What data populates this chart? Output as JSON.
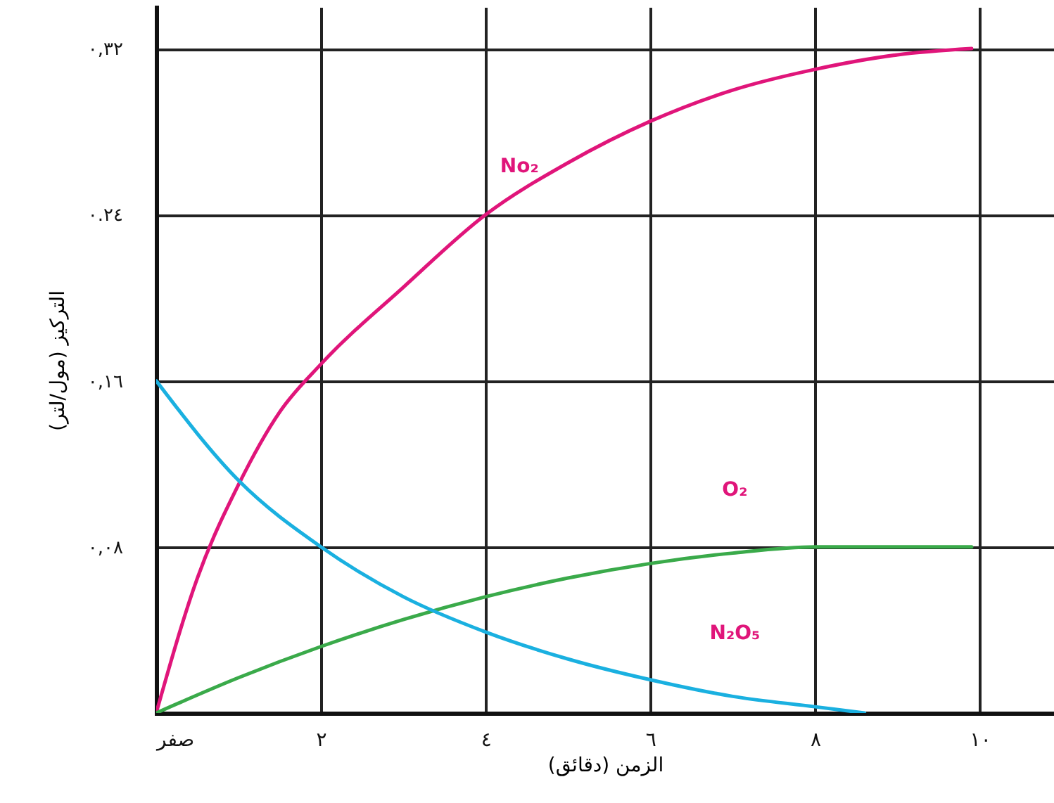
{
  "chart_data": {
    "type": "line",
    "xlabel": "الزمن (دقائق)",
    "ylabel": "التركيز (مول/لتر)",
    "xlim": [
      0,
      10.9
    ],
    "ylim": [
      0,
      0.34
    ],
    "xticks": [
      {
        "value": 0,
        "label": "صفر"
      },
      {
        "value": 2,
        "label": "٢"
      },
      {
        "value": 4,
        "label": "٤"
      },
      {
        "value": 6,
        "label": "٦"
      },
      {
        "value": 8,
        "label": "٨"
      },
      {
        "value": 10,
        "label": "١٠"
      }
    ],
    "yticks": [
      {
        "value": 0,
        "label": null
      },
      {
        "value": 0.08,
        "label": "٠,٠٨"
      },
      {
        "value": 0.16,
        "label": "٠,١٦"
      },
      {
        "value": 0.24,
        "label": "٠.٢٤"
      },
      {
        "value": 0.32,
        "label": "٠,٣٢"
      }
    ],
    "grid": true,
    "marker": "none",
    "line_style": "solid",
    "series": [
      {
        "name": "No₂",
        "color": "#e0157a",
        "x": [
          0,
          0.5,
          1,
          1.5,
          2,
          3,
          4,
          5,
          6,
          7,
          8,
          9,
          9.9
        ],
        "values": [
          0,
          0.065,
          0.11,
          0.145,
          0.168,
          0.205,
          0.24,
          0.265,
          0.285,
          0.3,
          0.31,
          0.317,
          0.32
        ]
      },
      {
        "name": "O₂",
        "color": "#3aaa4a",
        "x": [
          0,
          1,
          2,
          3,
          4,
          5,
          6,
          7,
          8,
          9,
          9.9
        ],
        "values": [
          0,
          0.017,
          0.032,
          0.045,
          0.056,
          0.065,
          0.072,
          0.077,
          0.08,
          0.08,
          0.08
        ]
      },
      {
        "name": "N₂O₅",
        "color": "#1ab0e0",
        "x": [
          0,
          1,
          2,
          3,
          4,
          5,
          6,
          7,
          8,
          8.6
        ],
        "values": [
          0.16,
          0.112,
          0.08,
          0.056,
          0.039,
          0.026,
          0.016,
          0.008,
          0.003,
          0
        ]
      }
    ]
  }
}
